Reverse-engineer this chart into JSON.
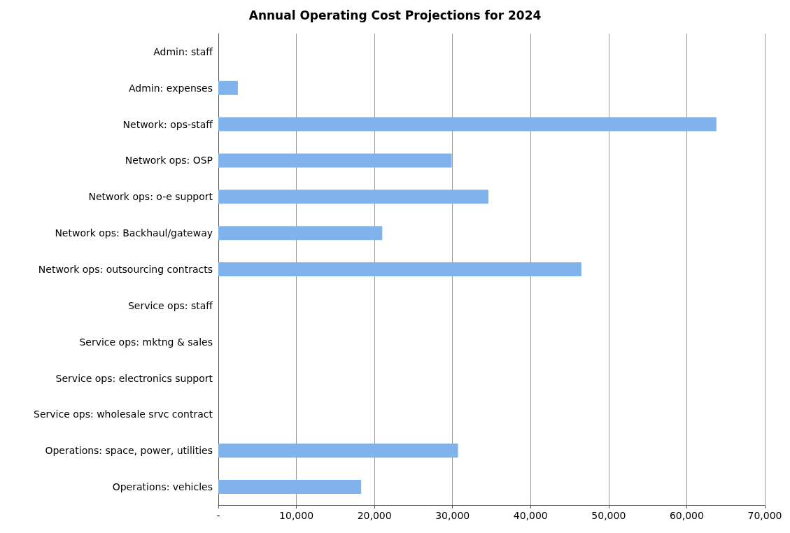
{
  "chart_data": {
    "type": "bar",
    "orientation": "horizontal",
    "title": "Annual Operating Cost Projections for 2024",
    "categories": [
      "Admin: staff",
      "Admin: expenses",
      "Network: ops-staff",
      "Network ops: OSP",
      "Network ops: o-e support",
      "Network ops: Backhaul/gateway",
      "Network ops: outsourcing contracts",
      "Service ops: staff",
      "Service ops: mktng & sales",
      "Service ops: electronics support",
      "Service ops: wholesale srvc contract",
      "Operations: space, power, utilities",
      "Operations: vehicles"
    ],
    "values": [
      0,
      2500,
      63800,
      29900,
      34600,
      21000,
      46500,
      0,
      0,
      0,
      0,
      30700,
      18300
    ],
    "color": "#80b2ec",
    "xlim": [
      0,
      70000
    ],
    "xticks": [
      {
        "value": 0,
        "label": "-"
      },
      {
        "value": 10000,
        "label": "10,000"
      },
      {
        "value": 20000,
        "label": "20,000"
      },
      {
        "value": 30000,
        "label": "30,000"
      },
      {
        "value": 40000,
        "label": "40,000"
      },
      {
        "value": 50000,
        "label": "50,000"
      },
      {
        "value": 60000,
        "label": "60,000"
      },
      {
        "value": 70000,
        "label": "70,000"
      }
    ],
    "grid": "x"
  }
}
